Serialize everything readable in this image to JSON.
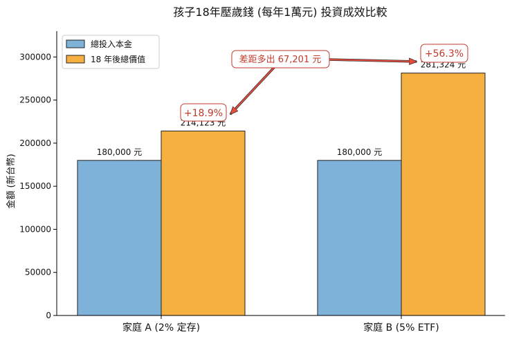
{
  "chart_data": {
    "type": "bar",
    "title": "孩子18年壓歲錢 (每年1萬元) 投資成效比較",
    "ylabel": "金額 (新台幣)",
    "xlabel": "",
    "ylim": [
      0,
      330000
    ],
    "yticks": [
      0,
      50000,
      100000,
      150000,
      200000,
      250000,
      300000
    ],
    "categories": [
      "家庭 A (2% 定存)",
      "家庭 B (5% ETF)"
    ],
    "series": [
      {
        "name": "總投入本金",
        "values": [
          180000,
          180000
        ],
        "labels": [
          "180,000 元",
          "180,000 元"
        ],
        "color": "#7fb2d8"
      },
      {
        "name": "18 年後總價值",
        "values": [
          214123,
          281324
        ],
        "labels": [
          "214,123 元",
          "281,324 元"
        ],
        "color": "#f5b041"
      }
    ],
    "legend_position": "top-left",
    "grid": false,
    "annotations": {
      "growth": [
        "+18.9%",
        "+56.3%"
      ],
      "difference": "差距多出 67,201 元"
    }
  }
}
